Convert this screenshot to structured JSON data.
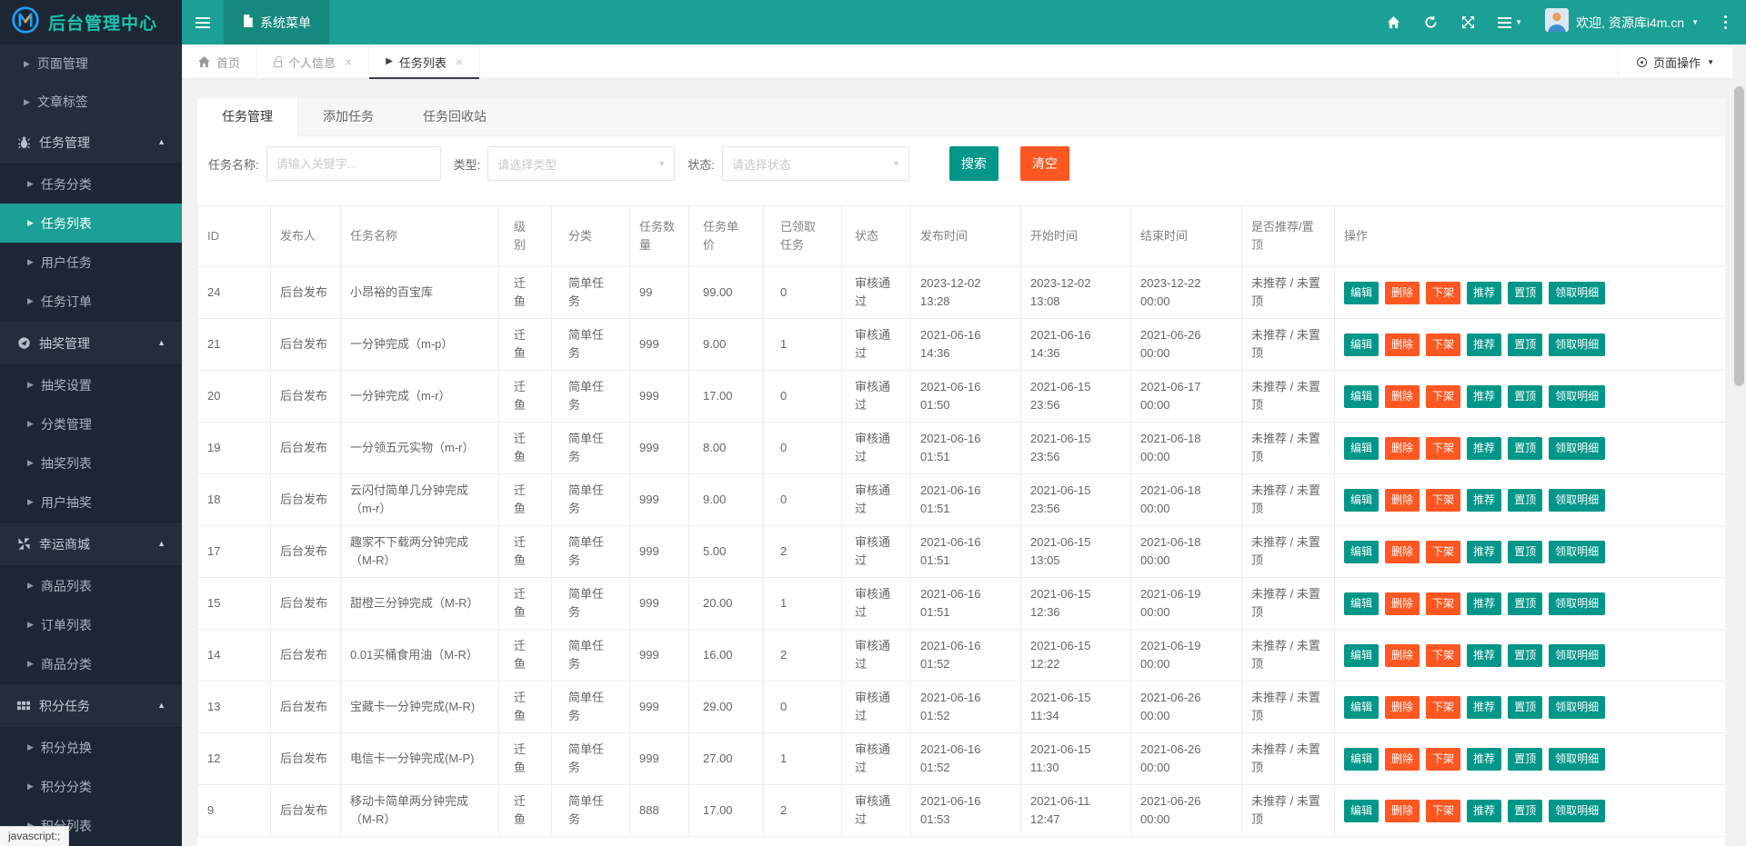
{
  "header": {
    "app_title": "后台管理中心",
    "menu_tab_label": "系统菜单",
    "welcome_text": "欢迎, 资源库i4m.cn",
    "right_icons": [
      "home-icon",
      "refresh-icon",
      "fullscreen-icon",
      "menu-list-icon",
      "user-avatar",
      "kebab-menu-icon"
    ]
  },
  "breadcrumb": {
    "items": [
      {
        "label": "首页",
        "icon": "home-icon",
        "closable": false,
        "active": false
      },
      {
        "label": "个人信息",
        "icon": "lock-icon",
        "closable": true,
        "active": false
      },
      {
        "label": "任务列表",
        "icon": "caret-right-icon",
        "closable": true,
        "active": true
      }
    ],
    "close_glyph": "×",
    "page_action_label": "页面操作"
  },
  "sidebar": {
    "active_item": "任务列表",
    "items": [
      {
        "label": "页面管理",
        "type": "leaf"
      },
      {
        "label": "文章标签",
        "type": "leaf"
      },
      {
        "label": "任务管理",
        "type": "group",
        "icon": "bug",
        "children": [
          "任务分类",
          "任务列表",
          "用户任务",
          "任务订单"
        ]
      },
      {
        "label": "抽奖管理",
        "type": "group",
        "icon": "circle",
        "children": [
          "抽奖设置",
          "分类管理",
          "抽奖列表",
          "用户抽奖"
        ]
      },
      {
        "label": "幸运商城",
        "type": "group",
        "icon": "pinwheel",
        "children": [
          "商品列表",
          "订单列表",
          "商品分类"
        ]
      },
      {
        "label": "积分任务",
        "type": "group",
        "icon": "grid",
        "children": [
          "积分兑换",
          "积分分类",
          "积分列表"
        ]
      }
    ]
  },
  "tabs": {
    "items": [
      "任务管理",
      "添加任务",
      "任务回收站"
    ],
    "active": "任务管理"
  },
  "filters": {
    "name_label": "任务名称:",
    "name_placeholder": "请输入关键字...",
    "type_label": "类型:",
    "type_placeholder": "请选择类型",
    "status_label": "状态:",
    "status_placeholder": "请选择状态",
    "search_label": "搜索",
    "clear_label": "清空"
  },
  "table": {
    "headers": [
      "ID",
      "发布人",
      "任务名称",
      "级别",
      "分类",
      "任务数量",
      "任务单价",
      "已领取任务",
      "状态",
      "发布时间",
      "开始时间",
      "结束时间",
      "是否推荐/置顶",
      "操作"
    ],
    "row_actions": [
      "编辑",
      "删除",
      "下架",
      "推荐",
      "置顶",
      "领取明细"
    ],
    "rows": [
      {
        "id": "24",
        "publisher": "后台发布",
        "name": "小昂裕的百宝库",
        "level": "迁鱼",
        "category": "简单任务",
        "quantity": "99",
        "price": "99.00",
        "claimed": "0",
        "status": "审核通过",
        "publish_time": "2023-12-02 13:28",
        "start_time": "2023-12-02 13:08",
        "end_time": "2023-12-22 00:00",
        "promote": "未推荐 / 未置顶"
      },
      {
        "id": "21",
        "publisher": "后台发布",
        "name": "一分钟完成（m-p）",
        "level": "迁鱼",
        "category": "简单任务",
        "quantity": "999",
        "price": "9.00",
        "claimed": "1",
        "status": "审核通过",
        "publish_time": "2021-06-16 14:36",
        "start_time": "2021-06-16 14:36",
        "end_time": "2021-06-26 00:00",
        "promote": "未推荐 / 未置顶"
      },
      {
        "id": "20",
        "publisher": "后台发布",
        "name": "一分钟完成（m-r）",
        "level": "迁鱼",
        "category": "简单任务",
        "quantity": "999",
        "price": "17.00",
        "claimed": "0",
        "status": "审核通过",
        "publish_time": "2021-06-16 01:50",
        "start_time": "2021-06-15 23:56",
        "end_time": "2021-06-17 00:00",
        "promote": "未推荐 / 未置顶"
      },
      {
        "id": "19",
        "publisher": "后台发布",
        "name": "一分领五元实物（m-r）",
        "level": "迁鱼",
        "category": "简单任务",
        "quantity": "999",
        "price": "8.00",
        "claimed": "0",
        "status": "审核通过",
        "publish_time": "2021-06-16 01:51",
        "start_time": "2021-06-15 23:56",
        "end_time": "2021-06-18 00:00",
        "promote": "未推荐 / 未置顶"
      },
      {
        "id": "18",
        "publisher": "后台发布",
        "name": "云闪付简单几分钟完成（m-r）",
        "level": "迁鱼",
        "category": "简单任务",
        "quantity": "999",
        "price": "9.00",
        "claimed": "0",
        "status": "审核通过",
        "publish_time": "2021-06-16 01:51",
        "start_time": "2021-06-15 23:56",
        "end_time": "2021-06-18 00:00",
        "promote": "未推荐 / 未置顶"
      },
      {
        "id": "17",
        "publisher": "后台发布",
        "name": "趣家不下载两分钟完成（M-R）",
        "level": "迁鱼",
        "category": "简单任务",
        "quantity": "999",
        "price": "5.00",
        "claimed": "2",
        "status": "审核通过",
        "publish_time": "2021-06-16 01:51",
        "start_time": "2021-06-15 13:05",
        "end_time": "2021-06-18 00:00",
        "promote": "未推荐 / 未置顶"
      },
      {
        "id": "15",
        "publisher": "后台发布",
        "name": "甜橙三分钟完成（M-R）",
        "level": "迁鱼",
        "category": "简单任务",
        "quantity": "999",
        "price": "20.00",
        "claimed": "1",
        "status": "审核通过",
        "publish_time": "2021-06-16 01:51",
        "start_time": "2021-06-15 12:36",
        "end_time": "2021-06-19 00:00",
        "promote": "未推荐 / 未置顶"
      },
      {
        "id": "14",
        "publisher": "后台发布",
        "name": "0.01买桶食用油（M-R）",
        "level": "迁鱼",
        "category": "简单任务",
        "quantity": "999",
        "price": "16.00",
        "claimed": "2",
        "status": "审核通过",
        "publish_time": "2021-06-16 01:52",
        "start_time": "2021-06-15 12:22",
        "end_time": "2021-06-19 00:00",
        "promote": "未推荐 / 未置顶"
      },
      {
        "id": "13",
        "publisher": "后台发布",
        "name": "宝藏卡一分钟完成(M-R)",
        "level": "迁鱼",
        "category": "简单任务",
        "quantity": "999",
        "price": "29.00",
        "claimed": "0",
        "status": "审核通过",
        "publish_time": "2021-06-16 01:52",
        "start_time": "2021-06-15 11:34",
        "end_time": "2021-06-26 00:00",
        "promote": "未推荐 / 未置顶"
      },
      {
        "id": "12",
        "publisher": "后台发布",
        "name": "电信卡一分钟完成(M-P)",
        "level": "迁鱼",
        "category": "简单任务",
        "quantity": "999",
        "price": "27.00",
        "claimed": "1",
        "status": "审核通过",
        "publish_time": "2021-06-16 01:52",
        "start_time": "2021-06-15 11:30",
        "end_time": "2021-06-26 00:00",
        "promote": "未推荐 / 未置顶"
      },
      {
        "id": "9",
        "publisher": "后台发布",
        "name": "移动卡简单两分钟完成（M-R）",
        "level": "迁鱼",
        "category": "简单任务",
        "quantity": "888",
        "price": "17.00",
        "claimed": "2",
        "status": "审核通过",
        "publish_time": "2021-06-16 01:53",
        "start_time": "2021-06-11 12:47",
        "end_time": "2021-06-26 00:00",
        "promote": "未推荐 / 未置顶"
      }
    ]
  },
  "misc": {
    "status_tip": "javascript:;"
  },
  "colors": {
    "header_teal": "#1aa094",
    "header_tab_teal": "#15897e",
    "sidebar_bg": "#232d3b",
    "sidebar_sub_bg": "#1d2634",
    "active_item_teal": "#1aa094",
    "button_teal": "#009688",
    "button_orange": "#ff5722",
    "active_tab_underline": "#393d49"
  }
}
